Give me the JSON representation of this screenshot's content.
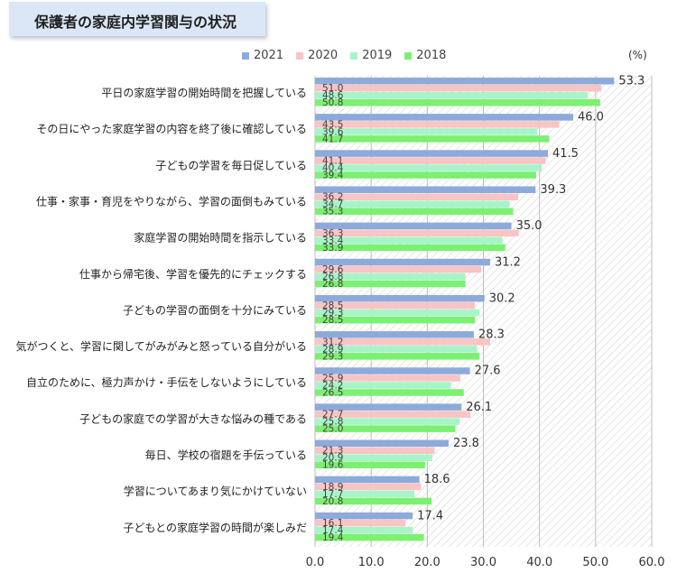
{
  "title": "保護者の家庭内学習関与の状況",
  "unit_label": "(%)",
  "colors": {
    "2021": "#8eaadb",
    "2020": "#f8c4c4",
    "2019": "#a6f5c8",
    "2018": "#7cf071",
    "title_bg": "#dbe7f6",
    "hatch_line": "#cfcfcf"
  },
  "chart_data": {
    "type": "bar",
    "orientation": "horizontal",
    "title": "保護者の家庭内学習関与の状況",
    "xlim": [
      0,
      60
    ],
    "xticks": [
      "0.0",
      "10.0",
      "20.0",
      "30.0",
      "40.0",
      "50.0",
      "60.0"
    ],
    "legend_position": "top",
    "categories": [
      "平日の家庭学習の開始時間を把握している",
      "その日にやった家庭学習の内容を終了後に確認している",
      "子どもの学習を毎日促している",
      "仕事・家事・育児をやりながら、学習の面倒もみている",
      "家庭学習の開始時間を指示している",
      "仕事から帰宅後、学習を優先的にチェックする",
      "子どもの学習の面倒を十分にみている",
      "気がつくと、学習に関してがみがみと怒っている自分がいる",
      "自立のために、極力声かけ・手伝をしないようにしている",
      "子どもの家庭での学習が大きな悩みの種である",
      "毎日、学校の宿題を手伝っている",
      "学習についてあまり気にかけていない",
      "子どもとの家庭学習の時間が楽しみだ"
    ],
    "series": [
      {
        "name": "2021",
        "values": [
          53.3,
          46.0,
          41.5,
          39.3,
          35.0,
          31.2,
          30.2,
          28.3,
          27.6,
          26.1,
          23.8,
          18.6,
          17.4
        ]
      },
      {
        "name": "2020",
        "values": [
          51.0,
          43.5,
          41.1,
          36.2,
          36.3,
          29.6,
          28.5,
          31.2,
          25.9,
          27.7,
          21.3,
          18.9,
          16.1
        ]
      },
      {
        "name": "2019",
        "values": [
          48.6,
          39.6,
          40.4,
          34.7,
          33.4,
          26.8,
          29.3,
          28.9,
          24.2,
          25.8,
          20.9,
          17.7,
          17.4
        ]
      },
      {
        "name": "2018",
        "values": [
          50.8,
          41.7,
          39.4,
          35.3,
          33.9,
          26.8,
          28.5,
          29.3,
          26.5,
          25.0,
          19.6,
          20.8,
          19.4
        ]
      }
    ],
    "labels": [
      [
        "53.3",
        "51.0",
        "48.6",
        "50.8"
      ],
      [
        "46.0",
        "43.5",
        "39.6",
        "41.7"
      ],
      [
        "41.5",
        "41.1",
        "40.4",
        "39.4"
      ],
      [
        "39.3",
        "36.2",
        "34.7",
        "35.3"
      ],
      [
        "35.0",
        "36.3",
        "33.4",
        "33.9"
      ],
      [
        "31.2",
        "29.6",
        "26.8",
        "26.8"
      ],
      [
        "30.2",
        "28.5",
        "29.3",
        "28.5"
      ],
      [
        "28.3",
        "31.2",
        "28.9",
        "29.3"
      ],
      [
        "27.6",
        "25.9",
        "24.2",
        "26.5"
      ],
      [
        "26.1",
        "27.7",
        "25.8",
        "25.0"
      ],
      [
        "23.8",
        "21.3",
        "20.9",
        "19.6"
      ],
      [
        "18.6",
        "18.9",
        "17.7",
        "20.8"
      ],
      [
        "17.4",
        "16.1",
        "17.4",
        "19.4"
      ]
    ]
  }
}
